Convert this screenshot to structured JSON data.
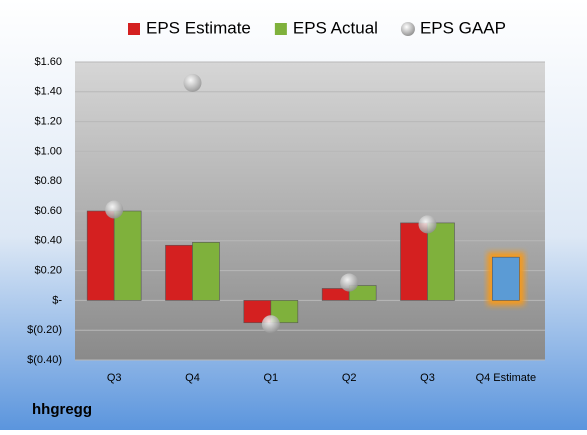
{
  "chart_data": {
    "type": "bar",
    "footer": "hhgregg",
    "categories": [
      "Q3",
      "Q4",
      "Q1",
      "Q2",
      "Q3",
      "Q4 Estimate"
    ],
    "series": [
      {
        "name": "EPS Estimate",
        "color": "#d42020",
        "point_colors": [
          "#d42020",
          "#d42020",
          "#d42020",
          "#d42020",
          "#d42020",
          "#5b9bd5"
        ],
        "values": [
          0.6,
          0.37,
          -0.15,
          0.08,
          0.52,
          0.29
        ]
      },
      {
        "name": "EPS Actual",
        "color": "#7fb13c",
        "values": [
          0.6,
          0.39,
          -0.15,
          0.1,
          0.52,
          null
        ]
      },
      {
        "name": "EPS GAAP",
        "color": "#b0b0b0",
        "kind": "dot",
        "values": [
          0.61,
          1.46,
          -0.16,
          0.12,
          0.51,
          null
        ]
      }
    ],
    "ylim": [
      -0.4,
      1.6
    ],
    "yticks": [
      {
        "value": -0.4,
        "label": "$(0.40)"
      },
      {
        "value": -0.2,
        "label": "$(0.20)"
      },
      {
        "value": 0,
        "label": "$-"
      },
      {
        "value": 0.2,
        "label": "$0.20"
      },
      {
        "value": 0.4,
        "label": "$0.40"
      },
      {
        "value": 0.6,
        "label": "$0.60"
      },
      {
        "value": 0.8,
        "label": "$0.80"
      },
      {
        "value": 1.0,
        "label": "$1.00"
      },
      {
        "value": 1.2,
        "label": "$1.20"
      },
      {
        "value": 1.4,
        "label": "$1.40"
      },
      {
        "value": 1.6,
        "label": "$1.60"
      }
    ],
    "grid": true
  }
}
